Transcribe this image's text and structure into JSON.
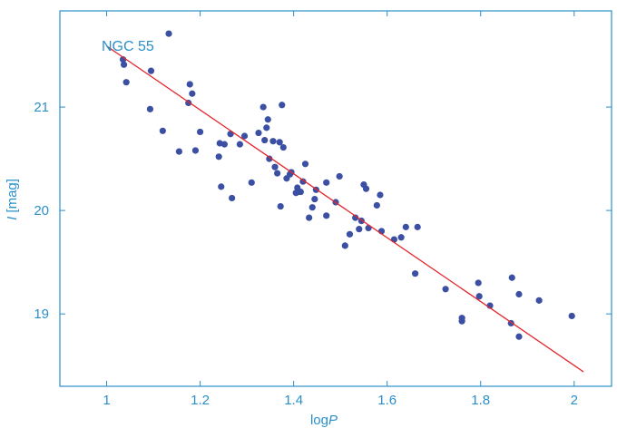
{
  "chart_data": {
    "type": "scatter",
    "title": "",
    "annotation": "NGC 55",
    "xlabel_prefix": "log",
    "xlabel_var": "P",
    "ylabel_var": "I",
    "ylabel_suffix": " [mag]",
    "xlim": [
      0.9,
      2.08
    ],
    "ylim": [
      21.93,
      18.3
    ],
    "y_inverted": true,
    "x_ticks": [
      1,
      1.2,
      1.4,
      1.6,
      1.8,
      2
    ],
    "x_tick_labels": [
      "1",
      "1.2",
      "1.4",
      "1.6",
      "1.8",
      "2"
    ],
    "y_ticks": [
      19,
      20,
      21
    ],
    "y_tick_labels": [
      "19",
      "20",
      "21"
    ],
    "grid": false,
    "colors": {
      "axis": "#2a8fc9",
      "points": "#3b4fa3",
      "fit_line": "#e3262d",
      "text": "#2a8fc9"
    },
    "fit_line": {
      "x": [
        1.0,
        2.02
      ],
      "y": [
        21.59,
        18.44
      ]
    },
    "points": [
      {
        "x": 1.035,
        "y": 21.46
      },
      {
        "x": 1.037,
        "y": 21.41
      },
      {
        "x": 1.042,
        "y": 21.24
      },
      {
        "x": 1.093,
        "y": 20.98
      },
      {
        "x": 1.095,
        "y": 21.35
      },
      {
        "x": 1.12,
        "y": 20.77
      },
      {
        "x": 1.133,
        "y": 21.71
      },
      {
        "x": 1.155,
        "y": 20.57
      },
      {
        "x": 1.175,
        "y": 21.04
      },
      {
        "x": 1.178,
        "y": 21.22
      },
      {
        "x": 1.183,
        "y": 21.13
      },
      {
        "x": 1.19,
        "y": 20.58
      },
      {
        "x": 1.2,
        "y": 20.76
      },
      {
        "x": 1.24,
        "y": 20.52
      },
      {
        "x": 1.242,
        "y": 20.65
      },
      {
        "x": 1.245,
        "y": 20.23
      },
      {
        "x": 1.252,
        "y": 20.64
      },
      {
        "x": 1.265,
        "y": 20.74
      },
      {
        "x": 1.268,
        "y": 20.12
      },
      {
        "x": 1.285,
        "y": 20.64
      },
      {
        "x": 1.295,
        "y": 20.72
      },
      {
        "x": 1.31,
        "y": 20.27
      },
      {
        "x": 1.325,
        "y": 20.75
      },
      {
        "x": 1.335,
        "y": 21.0
      },
      {
        "x": 1.338,
        "y": 20.68
      },
      {
        "x": 1.342,
        "y": 20.8
      },
      {
        "x": 1.345,
        "y": 20.88
      },
      {
        "x": 1.348,
        "y": 20.5
      },
      {
        "x": 1.356,
        "y": 20.67
      },
      {
        "x": 1.36,
        "y": 20.42
      },
      {
        "x": 1.365,
        "y": 20.36
      },
      {
        "x": 1.37,
        "y": 20.66
      },
      {
        "x": 1.372,
        "y": 20.04
      },
      {
        "x": 1.375,
        "y": 21.02
      },
      {
        "x": 1.378,
        "y": 20.61
      },
      {
        "x": 1.385,
        "y": 20.31
      },
      {
        "x": 1.392,
        "y": 20.35
      },
      {
        "x": 1.395,
        "y": 20.37
      },
      {
        "x": 1.405,
        "y": 20.17
      },
      {
        "x": 1.408,
        "y": 20.22
      },
      {
        "x": 1.41,
        "y": 20.18
      },
      {
        "x": 1.415,
        "y": 20.18
      },
      {
        "x": 1.42,
        "y": 20.28
      },
      {
        "x": 1.425,
        "y": 20.45
      },
      {
        "x": 1.433,
        "y": 19.93
      },
      {
        "x": 1.44,
        "y": 20.03
      },
      {
        "x": 1.445,
        "y": 20.11
      },
      {
        "x": 1.448,
        "y": 20.2
      },
      {
        "x": 1.47,
        "y": 20.27
      },
      {
        "x": 1.47,
        "y": 19.95
      },
      {
        "x": 1.49,
        "y": 20.08
      },
      {
        "x": 1.498,
        "y": 20.33
      },
      {
        "x": 1.51,
        "y": 19.66
      },
      {
        "x": 1.52,
        "y": 19.77
      },
      {
        "x": 1.532,
        "y": 19.93
      },
      {
        "x": 1.54,
        "y": 19.82
      },
      {
        "x": 1.545,
        "y": 19.9
      },
      {
        "x": 1.55,
        "y": 20.25
      },
      {
        "x": 1.555,
        "y": 20.21
      },
      {
        "x": 1.56,
        "y": 19.83
      },
      {
        "x": 1.578,
        "y": 20.05
      },
      {
        "x": 1.585,
        "y": 20.15
      },
      {
        "x": 1.588,
        "y": 19.8
      },
      {
        "x": 1.615,
        "y": 19.72
      },
      {
        "x": 1.63,
        "y": 19.74
      },
      {
        "x": 1.64,
        "y": 19.84
      },
      {
        "x": 1.66,
        "y": 19.39
      },
      {
        "x": 1.665,
        "y": 19.84
      },
      {
        "x": 1.725,
        "y": 19.24
      },
      {
        "x": 1.76,
        "y": 18.93
      },
      {
        "x": 1.76,
        "y": 18.96
      },
      {
        "x": 1.795,
        "y": 19.3
      },
      {
        "x": 1.797,
        "y": 19.17
      },
      {
        "x": 1.82,
        "y": 19.08
      },
      {
        "x": 1.865,
        "y": 18.91
      },
      {
        "x": 1.867,
        "y": 19.35
      },
      {
        "x": 1.882,
        "y": 18.78
      },
      {
        "x": 1.882,
        "y": 19.19
      },
      {
        "x": 1.925,
        "y": 19.13
      },
      {
        "x": 1.995,
        "y": 18.98
      }
    ]
  }
}
